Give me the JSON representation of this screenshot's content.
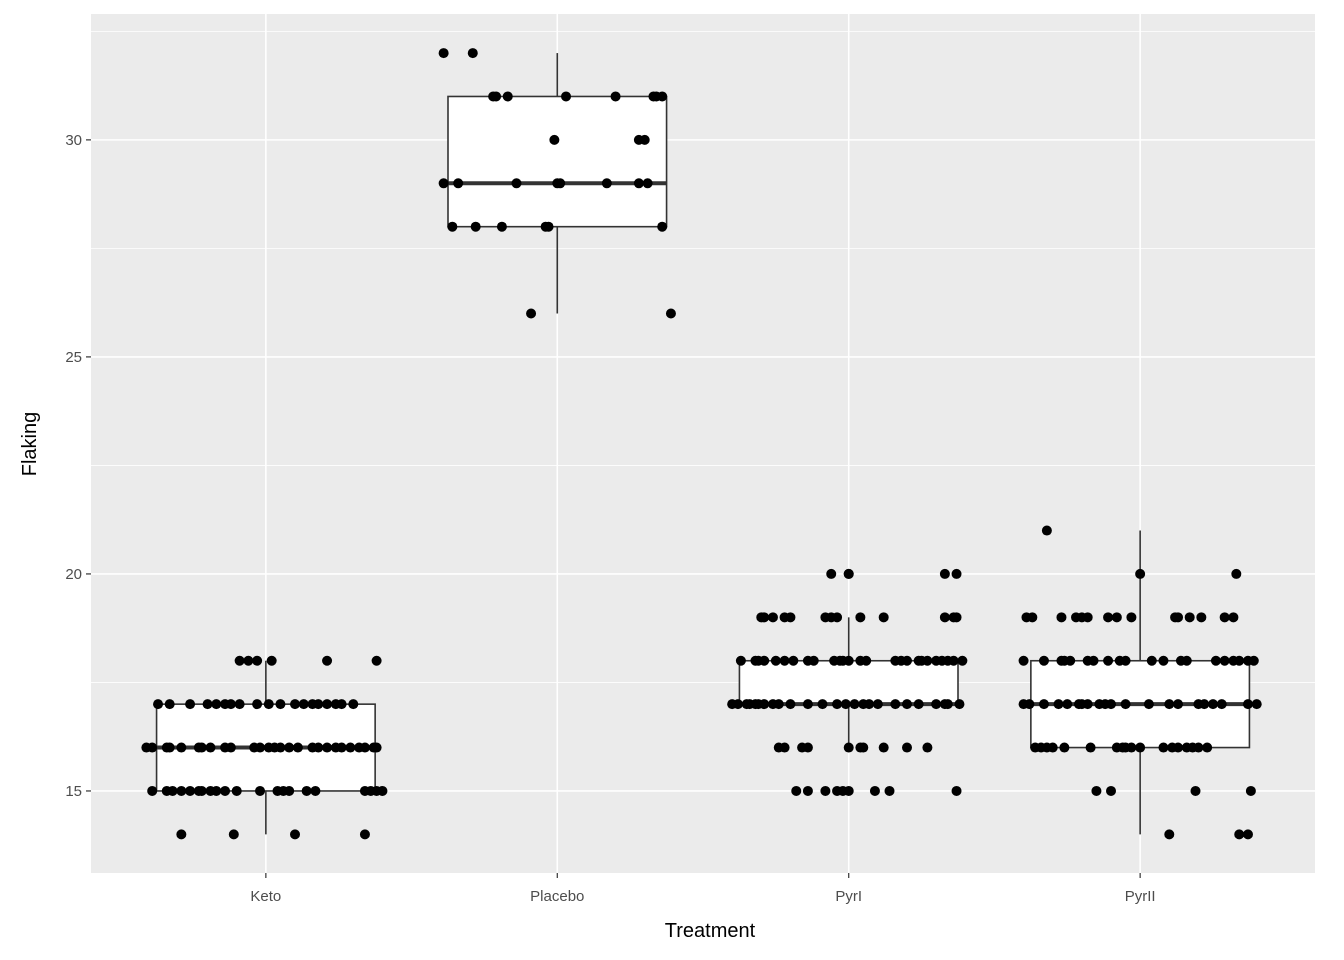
{
  "chart_data": {
    "type": "boxplot",
    "title": "",
    "xlabel": "Treatment",
    "ylabel": "Flaking",
    "categories": [
      "Keto",
      "Placebo",
      "PyrI",
      "PyrII"
    ],
    "ylim": [
      13.11,
      32.9
    ],
    "yticks": [
      15,
      20,
      25,
      30
    ],
    "ytick_labels": [
      "15",
      "20",
      "25",
      "30"
    ],
    "grid": true,
    "colors": {
      "panel": "#EBEBEB",
      "grid": "#FFFFFF",
      "box_fill": "#FFFFFF",
      "box_line": "#333333",
      "point": "#000000"
    },
    "boxes": [
      {
        "category": "Keto",
        "lower_whisker": 14,
        "q1": 15,
        "median": 16,
        "q3": 17,
        "upper_whisker": 18
      },
      {
        "category": "Placebo",
        "lower_whisker": 26,
        "q1": 28,
        "median": 29,
        "q3": 31,
        "upper_whisker": 32
      },
      {
        "category": "PyrI",
        "lower_whisker": 16,
        "q1": 17,
        "median": 17,
        "q3": 18,
        "upper_whisker": 19
      },
      {
        "category": "PyrII",
        "lower_whisker": 14,
        "q1": 16,
        "median": 17,
        "q3": 18,
        "upper_whisker": 21
      }
    ],
    "jitter_points": [
      {
        "category": "Keto",
        "by_value": {
          "18": [
            -0.09,
            -0.06,
            -0.03,
            0.02,
            0.21,
            0.38
          ],
          "17": [
            -0.37,
            -0.33,
            -0.26,
            -0.2,
            -0.17,
            -0.14,
            -0.12,
            -0.09,
            -0.03,
            0.01,
            0.05,
            0.1,
            0.13,
            0.16,
            0.18,
            0.21,
            0.24,
            0.26,
            0.3
          ],
          "16": [
            -0.41,
            -0.39,
            -0.34,
            -0.33,
            -0.29,
            -0.23,
            -0.22,
            -0.19,
            -0.14,
            -0.12,
            -0.04,
            -0.02,
            0.01,
            0.03,
            0.05,
            0.08,
            0.11,
            0.16,
            0.18,
            0.21,
            0.24,
            0.26,
            0.29,
            0.32,
            0.34,
            0.37,
            0.38
          ],
          "15": [
            -0.39,
            -0.34,
            -0.32,
            -0.29,
            -0.26,
            -0.23,
            -0.22,
            -0.19,
            -0.17,
            -0.14,
            -0.1,
            -0.02,
            0.04,
            0.06,
            0.08,
            0.14,
            0.17,
            0.34,
            0.36,
            0.38,
            0.4
          ],
          "14": [
            -0.29,
            -0.11,
            0.1,
            0.34
          ]
        }
      },
      {
        "category": "Placebo",
        "by_value": {
          "32": [
            -0.39,
            -0.29
          ],
          "31": [
            -0.22,
            -0.21,
            -0.17,
            0.03,
            0.2,
            0.33,
            0.34,
            0.36
          ],
          "30": [
            -0.01,
            0.28,
            0.3
          ],
          "29": [
            -0.39,
            -0.34,
            -0.14,
            0.0,
            0.01,
            0.17,
            0.28,
            0.31
          ],
          "28": [
            -0.36,
            -0.28,
            -0.19,
            -0.04,
            -0.03,
            0.36
          ],
          "26": [
            -0.09,
            0.39
          ]
        }
      },
      {
        "category": "PyrI",
        "by_value": {
          "20": [
            -0.06,
            0.0,
            0.0,
            0.33,
            0.37
          ],
          "19": [
            -0.3,
            -0.29,
            -0.26,
            -0.22,
            -0.2,
            -0.08,
            -0.06,
            -0.04,
            0.04,
            0.12,
            0.33,
            0.36,
            0.37
          ],
          "18": [
            -0.37,
            -0.32,
            -0.31,
            -0.29,
            -0.25,
            -0.22,
            -0.19,
            -0.14,
            -0.12,
            -0.05,
            -0.03,
            -0.02,
            0.0,
            0.04,
            0.06,
            0.16,
            0.18,
            0.2,
            0.24,
            0.25,
            0.27,
            0.3,
            0.32,
            0.34,
            0.36,
            0.39
          ],
          "17": [
            -0.4,
            -0.38,
            -0.35,
            -0.34,
            -0.32,
            -0.31,
            -0.29,
            -0.26,
            -0.24,
            -0.2,
            -0.14,
            -0.09,
            -0.04,
            -0.01,
            0.02,
            0.05,
            0.07,
            0.1,
            0.16,
            0.2,
            0.24,
            0.3,
            0.33,
            0.34,
            0.38
          ],
          "16": [
            -0.24,
            -0.22,
            -0.16,
            -0.14,
            0.0,
            0.04,
            0.05,
            0.12,
            0.2,
            0.27
          ],
          "15": [
            -0.18,
            -0.14,
            -0.08,
            -0.04,
            -0.02,
            0.0,
            0.09,
            0.14,
            0.37
          ]
        }
      },
      {
        "category": "PyrII",
        "by_value": {
          "21": [
            -0.32
          ],
          "20": [
            0.0,
            0.33
          ],
          "19": [
            -0.39,
            -0.37,
            -0.27,
            -0.22,
            -0.2,
            -0.18,
            -0.11,
            -0.08,
            -0.03,
            0.12,
            0.13,
            0.17,
            0.21,
            0.29,
            0.32
          ],
          "18": [
            -0.4,
            -0.33,
            -0.27,
            -0.26,
            -0.24,
            -0.18,
            -0.16,
            -0.11,
            -0.07,
            -0.05,
            0.04,
            0.08,
            0.14,
            0.16,
            0.26,
            0.29,
            0.32,
            0.34,
            0.37,
            0.39
          ],
          "17": [
            -0.4,
            -0.38,
            -0.33,
            -0.28,
            -0.25,
            -0.21,
            -0.2,
            -0.18,
            -0.14,
            -0.12,
            -0.1,
            -0.05,
            0.03,
            0.1,
            0.13,
            0.2,
            0.22,
            0.25,
            0.28,
            0.37,
            0.4
          ],
          "16": [
            -0.36,
            -0.34,
            -0.32,
            -0.3,
            -0.26,
            -0.17,
            -0.08,
            -0.06,
            -0.05,
            -0.03,
            0.0,
            0.08,
            0.11,
            0.13,
            0.16,
            0.18,
            0.2,
            0.23
          ],
          "15": [
            -0.15,
            -0.1,
            0.19,
            0.38
          ],
          "14": [
            0.1,
            0.34,
            0.37
          ]
        }
      }
    ]
  }
}
